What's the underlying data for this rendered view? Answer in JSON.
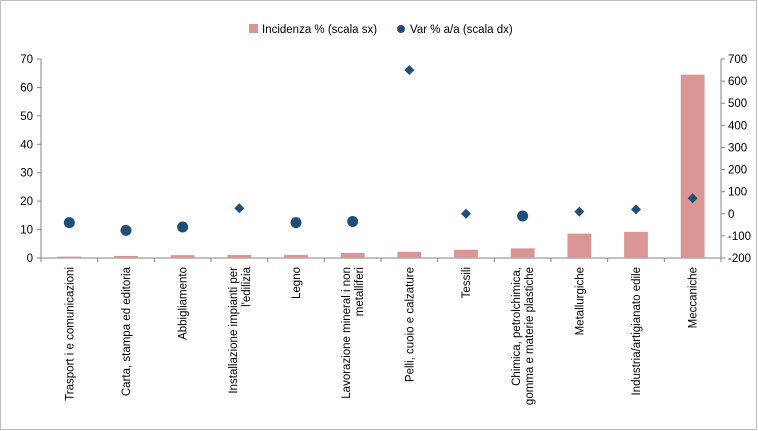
{
  "chart_data": {
    "type": "bar",
    "categories": [
      [
        "Trasport i e comunicazioni"
      ],
      [
        "Carta, stampa ed editoria"
      ],
      [
        "Abbigliamento"
      ],
      [
        "Installazione impianti per",
        "l'edilizia"
      ],
      [
        "Legno"
      ],
      [
        "Lavorazione mineral i non",
        "metalliferi"
      ],
      [
        "Pelli, cuoio e calzature"
      ],
      [
        "Tessili"
      ],
      [
        "Chimica, petrolchimica,",
        "gomma e materie plastiche"
      ],
      [
        "Metallurgiche"
      ],
      [
        "Industria/artigianato edile"
      ],
      [
        "Meccaniche"
      ]
    ],
    "series": [
      {
        "name": "Incidenza % (scala sx)",
        "type": "bar",
        "axis": "left",
        "color": "#d99694",
        "values": [
          0.5,
          0.7,
          1.0,
          1.1,
          1.1,
          1.8,
          2.2,
          2.9,
          3.4,
          8.6,
          9.2,
          64.5
        ]
      },
      {
        "name": "Var % a/a (scala dx)",
        "type": "scatter",
        "axis": "right",
        "color": "#1f4e79",
        "markers": [
          "circle",
          "circle",
          "circle",
          "diamond",
          "circle",
          "circle",
          "diamond",
          "diamond",
          "circle",
          "diamond",
          "diamond",
          "diamond"
        ],
        "values": [
          -40,
          -75,
          -60,
          25,
          -40,
          -35,
          650,
          0,
          -10,
          10,
          20,
          70
        ]
      }
    ],
    "y_left": {
      "min": 0,
      "max": 70,
      "ticks": [
        0,
        10,
        20,
        30,
        40,
        50,
        60,
        70
      ]
    },
    "y_right": {
      "min": -200,
      "max": 700,
      "ticks": [
        -200,
        -100,
        0,
        100,
        200,
        300,
        400,
        500,
        600,
        700
      ]
    },
    "legend": "top-center",
    "grid": false
  }
}
